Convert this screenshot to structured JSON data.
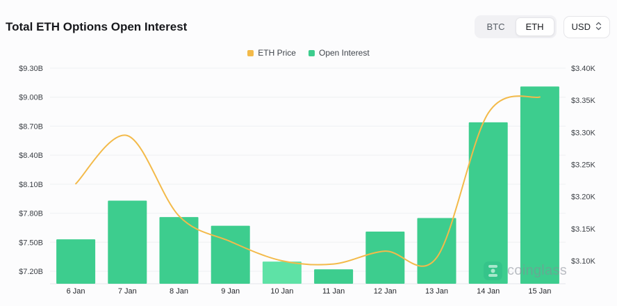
{
  "header": {
    "title": "Total ETH Options Open Interest",
    "coin_toggle": {
      "options": [
        "BTC",
        "ETH"
      ],
      "selected": "ETH"
    },
    "currency_select": {
      "value": "USD"
    }
  },
  "legend": [
    {
      "label": "ETH Price",
      "color": "#f3ba4a"
    },
    {
      "label": "Open Interest",
      "color": "#3dcd8e"
    }
  ],
  "watermark": {
    "text": "coinglass"
  },
  "chart_data": {
    "type": "bar",
    "title": "Total ETH Options Open Interest",
    "categories": [
      "6 Jan",
      "7 Jan",
      "8 Jan",
      "9 Jan",
      "10 Jan",
      "11 Jan",
      "12 Jan",
      "13 Jan",
      "14 Jan",
      "15 Jan"
    ],
    "series": [
      {
        "name": "Open Interest",
        "kind": "bar",
        "axis": "left",
        "unit": "B USD",
        "values": [
          7.53,
          7.93,
          7.76,
          7.67,
          7.3,
          7.22,
          7.61,
          7.75,
          8.74,
          9.11
        ],
        "color": "#3dcd8e",
        "highlight_index": 4,
        "highlight_color": "#5ee2a6"
      },
      {
        "name": "ETH Price",
        "kind": "line",
        "axis": "right",
        "unit": "K USD",
        "values": [
          3.22,
          3.295,
          3.17,
          3.13,
          3.1,
          3.095,
          3.115,
          3.105,
          3.33,
          3.355
        ],
        "color": "#f3ba4a"
      }
    ],
    "left_axis": {
      "min": 7.2,
      "max": 9.3,
      "step": 0.3,
      "ticks": [
        "$9.30B",
        "$9.00B",
        "$8.70B",
        "$8.40B",
        "$8.10B",
        "$7.80B",
        "$7.50B",
        "$7.20B"
      ]
    },
    "right_axis": {
      "min": 3.1,
      "max": 3.4,
      "step": 0.05,
      "ticks": [
        "$3.40K",
        "$3.35K",
        "$3.30K",
        "$3.25K",
        "$3.20K",
        "$3.15K",
        "$3.10K"
      ]
    },
    "grid": true,
    "legend_position": "top-center"
  }
}
